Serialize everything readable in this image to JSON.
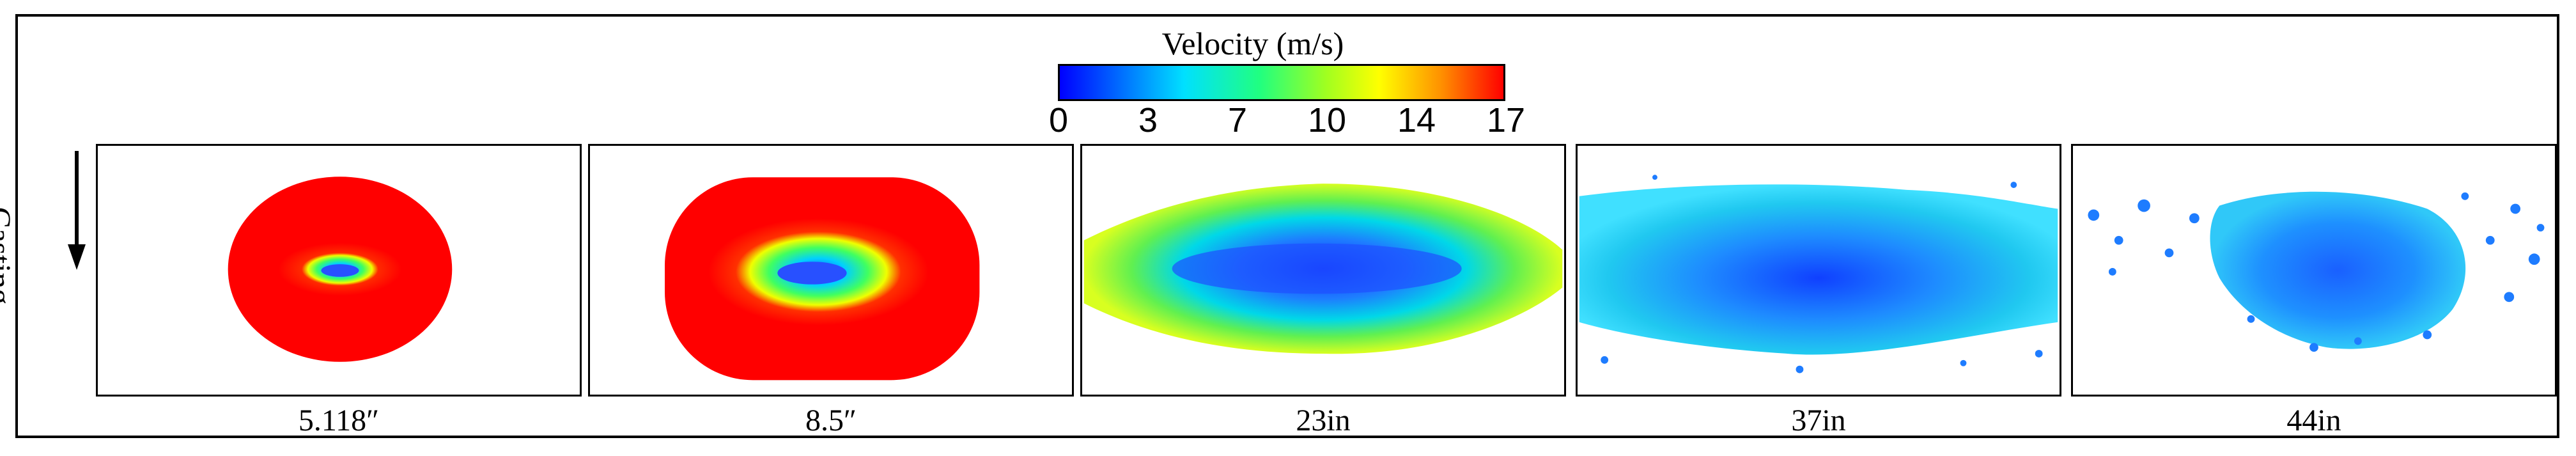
{
  "colorbar": {
    "title": "Velocity (m/s)",
    "ticks": [
      "0",
      "3",
      "7",
      "10",
      "14",
      "17"
    ],
    "colors": [
      "#0000ff",
      "#0070ff",
      "#00e0ff",
      "#20ff80",
      "#a0ff20",
      "#ffff00",
      "#ff9000",
      "#ff0000"
    ]
  },
  "axis": {
    "direction_label": "Casting"
  },
  "panels": [
    {
      "caption": "5.118″",
      "pattern": "compact-core"
    },
    {
      "caption": "8.5″",
      "pattern": "large-core"
    },
    {
      "caption": "23in",
      "pattern": "elongated-mixed"
    },
    {
      "caption": "37in",
      "pattern": "dispersed"
    },
    {
      "caption": "44in",
      "pattern": "scattered"
    }
  ]
}
